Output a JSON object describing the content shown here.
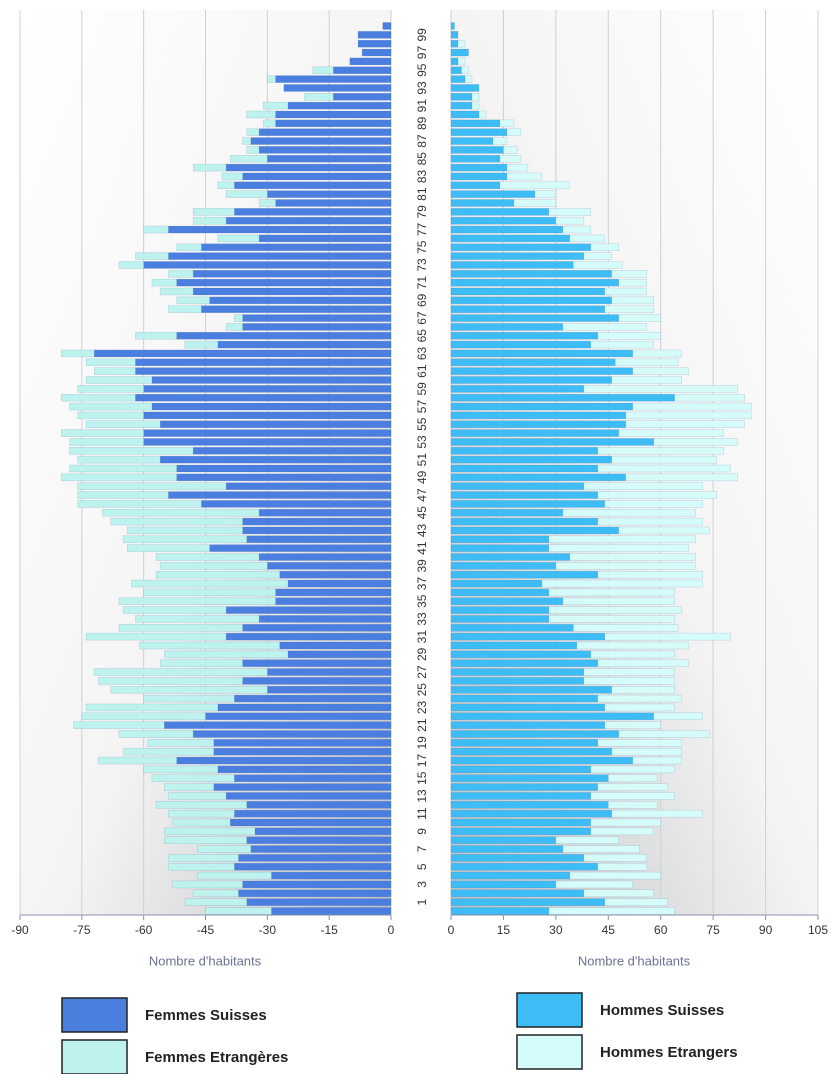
{
  "chart_data": [
    {
      "type": "bar",
      "orientation": "horizontal",
      "stacked": true,
      "x_label": "Nombre d'habitants",
      "categories": [
        null,
        "1",
        null,
        "3",
        null,
        "5",
        null,
        "7",
        null,
        "9",
        null,
        "11",
        null,
        "13",
        null,
        "15",
        null,
        "17",
        null,
        "19",
        null,
        "21",
        null,
        "23",
        null,
        "25",
        null,
        "27",
        null,
        "29",
        null,
        "31",
        null,
        "33",
        null,
        "35",
        null,
        "37",
        null,
        "39",
        null,
        "41",
        null,
        "43",
        null,
        "45",
        null,
        "47",
        null,
        "49",
        null,
        "51",
        null,
        "53",
        null,
        "55",
        null,
        "57",
        null,
        "59",
        null,
        "61",
        null,
        "63",
        null,
        "65",
        null,
        "67",
        null,
        "69",
        null,
        "71",
        null,
        "73",
        null,
        "75",
        null,
        "77",
        null,
        "79",
        null,
        "81",
        null,
        "83",
        null,
        "85",
        null,
        "87",
        null,
        "89",
        null,
        "91",
        null,
        "93",
        null,
        "95",
        null,
        "97",
        null,
        "99",
        null
      ],
      "xlim": [
        -90,
        0
      ],
      "xticks": [
        -90,
        -75,
        -60,
        -45,
        -30,
        -15,
        0
      ],
      "grid": true,
      "series": [
        {
          "name": "Femmes Suisses",
          "color": "#4a7fe0",
          "values": [
            -29,
            -35,
            -37,
            -36,
            -29,
            -38,
            -37,
            -34,
            -35,
            -33,
            -39,
            -38,
            -35,
            -40,
            -43,
            -38,
            -42,
            -52,
            -43,
            -43,
            -48,
            -55,
            -45,
            -42,
            -38,
            -30,
            -36,
            -30,
            -36,
            -25,
            -27,
            -40,
            -36,
            -32,
            -40,
            -28,
            -28,
            -25,
            -27,
            -30,
            -32,
            -44,
            -35,
            -36,
            -36,
            -32,
            -46,
            -54,
            -40,
            -52,
            -52,
            -56,
            -48,
            -60,
            -60,
            -56,
            -60,
            -58,
            -62,
            -60,
            -58,
            -62,
            -62,
            -72,
            -42,
            -52,
            -36,
            -36,
            -46,
            -44,
            -48,
            -52,
            -48,
            -60,
            -54,
            -46,
            -32,
            -54,
            -40,
            -38,
            -28,
            -30,
            -38,
            -36,
            -40,
            -30,
            -32,
            -34,
            -32,
            -28,
            -28,
            -25,
            -14,
            -26,
            -28,
            -14,
            -10,
            -7,
            -8,
            -8,
            -2
          ]
        },
        {
          "name": "Femmes Etrangères",
          "color": "#bdf2ee",
          "values": [
            -16,
            -15,
            -11,
            -17,
            -18,
            -16,
            -17,
            -13,
            -20,
            -22,
            -14,
            -16,
            -22,
            -14,
            -12,
            -20,
            -18,
            -19,
            -22,
            -16,
            -18,
            -22,
            -30,
            -32,
            -22,
            -38,
            -35,
            -42,
            -20,
            -30,
            -34,
            -34,
            -30,
            -30,
            -25,
            -38,
            -32,
            -38,
            -30,
            -26,
            -25,
            -20,
            -30,
            -28,
            -32,
            -38,
            -30,
            -22,
            -36,
            -28,
            -26,
            -20,
            -30,
            -18,
            -20,
            -18,
            -16,
            -20,
            -18,
            -16,
            -16,
            -10,
            -12,
            -8,
            -8,
            -10,
            -4,
            -2,
            -8,
            -8,
            -8,
            -6,
            -6,
            -6,
            -8,
            -6,
            -10,
            -6,
            -8,
            -10,
            -4,
            -10,
            -4,
            -5,
            -8,
            -9,
            -3,
            -2,
            -3,
            -3,
            -7,
            -6,
            -7,
            0,
            -2,
            -5,
            0,
            0,
            0,
            0,
            0
          ]
        }
      ]
    },
    {
      "type": "bar",
      "orientation": "horizontal",
      "stacked": true,
      "x_label": "Nombre d'habitants",
      "xlim": [
        0,
        105
      ],
      "xticks": [
        0,
        15,
        30,
        45,
        60,
        75,
        90,
        105
      ],
      "grid": true,
      "series": [
        {
          "name": "Hommes Suisses",
          "color": "#3dbcf5",
          "values": [
            28,
            44,
            38,
            30,
            34,
            42,
            38,
            32,
            30,
            40,
            40,
            46,
            45,
            40,
            42,
            45,
            40,
            52,
            46,
            42,
            48,
            44,
            58,
            44,
            42,
            46,
            38,
            38,
            42,
            40,
            36,
            44,
            35,
            28,
            28,
            32,
            28,
            26,
            42,
            30,
            34,
            28,
            28,
            48,
            42,
            32,
            44,
            42,
            38,
            50,
            42,
            46,
            42,
            58,
            48,
            50,
            50,
            52,
            64,
            38,
            46,
            52,
            47,
            52,
            40,
            42,
            32,
            48,
            44,
            46,
            44,
            48,
            46,
            35,
            38,
            40,
            34,
            32,
            30,
            28,
            18,
            24,
            14,
            16,
            16,
            14,
            15,
            12,
            16,
            14,
            8,
            6,
            6,
            8,
            4,
            3,
            2,
            5,
            2,
            2,
            1
          ]
        },
        {
          "name": "Hommes Etrangers",
          "color": "#d6fbfb",
          "values": [
            36,
            18,
            20,
            22,
            26,
            14,
            18,
            22,
            18,
            18,
            20,
            26,
            14,
            24,
            20,
            14,
            24,
            14,
            20,
            24,
            26,
            16,
            14,
            20,
            24,
            18,
            26,
            26,
            26,
            24,
            32,
            36,
            30,
            36,
            38,
            32,
            36,
            46,
            30,
            40,
            36,
            40,
            42,
            26,
            30,
            38,
            28,
            34,
            34,
            32,
            38,
            30,
            36,
            24,
            30,
            34,
            36,
            34,
            20,
            44,
            20,
            16,
            18,
            14,
            18,
            18,
            24,
            12,
            14,
            12,
            12,
            8,
            10,
            14,
            8,
            8,
            10,
            8,
            8,
            12,
            12,
            6,
            20,
            10,
            6,
            6,
            4,
            4,
            4,
            4,
            2,
            2,
            2,
            0,
            2,
            2,
            2,
            0,
            2,
            0,
            0
          ]
        }
      ]
    }
  ]
}
